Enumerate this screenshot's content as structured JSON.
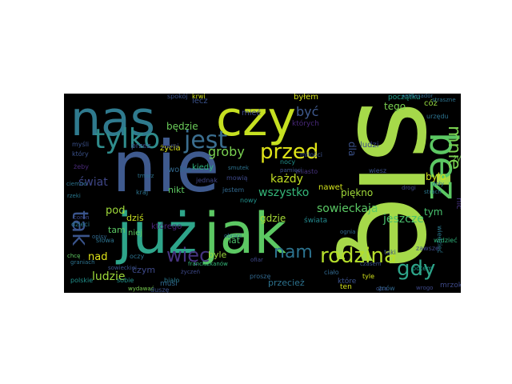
{
  "cloud": {
    "background": "#000000",
    "words": [
      {
        "text": "się",
        "color": "#a6d94a"
      },
      {
        "text": "nie",
        "color": "#3f5a8e"
      },
      {
        "text": "już",
        "color": "#2ea58a"
      },
      {
        "text": "jak",
        "color": "#5cc863"
      },
      {
        "text": "nas",
        "color": "#2f7a8e"
      },
      {
        "text": "czy",
        "color": "#c6e021"
      },
      {
        "text": "bez",
        "color": "#5cc863"
      },
      {
        "text": "tylko",
        "color": "#2f8c8c"
      },
      {
        "text": "jest",
        "color": "#3b6e8f"
      },
      {
        "text": "przed",
        "color": "#dfe318"
      },
      {
        "text": "więc",
        "color": "#46337e"
      },
      {
        "text": "rodzina",
        "color": "#b5de2b"
      },
      {
        "text": "gdy",
        "color": "#2ea58a"
      },
      {
        "text": "tak",
        "color": "#3a548c"
      },
      {
        "text": "mnie",
        "color": "#7ad151"
      },
      {
        "text": "nam",
        "color": "#2c728e"
      },
      {
        "text": "groby",
        "color": "#7ad151"
      },
      {
        "text": "być",
        "color": "#3f5a8e"
      },
      {
        "text": "wszystko",
        "color": "#35b779"
      },
      {
        "text": "sowieckaja",
        "color": "#5ac864"
      },
      {
        "text": "jeszcze",
        "color": "#4ac16d"
      },
      {
        "text": "każdy",
        "color": "#c2df23"
      },
      {
        "text": "ludzie",
        "color": "#9fda3a"
      },
      {
        "text": "świat",
        "color": "#3f4788"
      },
      {
        "text": "dla",
        "color": "#3b528b"
      },
      {
        "text": "będzie",
        "color": "#6ccd5a"
      },
      {
        "text": "pod",
        "color": "#9fda3a"
      },
      {
        "text": "tam",
        "color": "#5ac864"
      },
      {
        "text": "nad",
        "color": "#dfe318"
      },
      {
        "text": "dziś",
        "color": "#c8e020"
      },
      {
        "text": "gdzie",
        "color": "#a5db36"
      },
      {
        "text": "tym",
        "color": "#48c16e"
      },
      {
        "text": "było",
        "color": "#d2e21b"
      },
      {
        "text": "piękno",
        "color": "#a0da39"
      },
      {
        "text": "mieć",
        "color": "#3e4989"
      },
      {
        "text": "tego",
        "color": "#7ad151"
      },
      {
        "text": "byłem",
        "color": "#d5e21a"
      },
      {
        "text": "kiedy",
        "color": "#2fb47c"
      },
      {
        "text": "nawet",
        "color": "#d0e11c"
      },
      {
        "text": "lecz",
        "color": "#3b528b"
      },
      {
        "text": "nikt",
        "color": "#5ec962"
      },
      {
        "text": "lat",
        "color": "#4cc26c"
      },
      {
        "text": "byle",
        "color": "#9bd93c"
      },
      {
        "text": "czym",
        "color": "#3e4989"
      },
      {
        "text": "które",
        "color": "#3b528b"
      },
      {
        "text": "przecież",
        "color": "#2c728e"
      },
      {
        "text": "musi",
        "color": "#31688e"
      },
      {
        "text": "wiedzieć",
        "color": "#2a788e"
      },
      {
        "text": "mrzok",
        "color": "#3e4989"
      },
      {
        "text": "nic",
        "color": "#46327e"
      },
      {
        "text": "myśli",
        "color": "#3b528b"
      },
      {
        "text": "życie",
        "color": "#7ad151"
      },
      {
        "text": "życia",
        "color": "#d8e219"
      },
      {
        "text": "wolno",
        "color": "#31688e"
      },
      {
        "text": "świata",
        "color": "#23898e"
      },
      {
        "text": "którego",
        "color": "#482878"
      },
      {
        "text": "niej",
        "color": "#5ec962"
      },
      {
        "text": "ludzi",
        "color": "#3e4989"
      },
      {
        "text": "których",
        "color": "#482878"
      },
      {
        "text": "cóż",
        "color": "#95d840"
      },
      {
        "text": "początku",
        "color": "#1f9e89"
      },
      {
        "text": "miasto",
        "color": "#46337e"
      },
      {
        "text": "spokój",
        "color": "#3b528b"
      },
      {
        "text": "krwi",
        "color": "#d2e21b"
      },
      {
        "text": "oczy",
        "color": "#2c728e"
      },
      {
        "text": "żeby",
        "color": "#482878"
      },
      {
        "text": "przez",
        "color": "#3b528b"
      },
      {
        "text": "ziemi",
        "color": "#3e4989"
      },
      {
        "text": "który",
        "color": "#3b528b"
      },
      {
        "text": "jednak",
        "color": "#404688"
      },
      {
        "text": "sobie",
        "color": "#21918c"
      },
      {
        "text": "wydawać",
        "color": "#7ad151"
      },
      {
        "text": "strach",
        "color": "#2a788e"
      },
      {
        "text": "tyle",
        "color": "#d2e21b"
      },
      {
        "text": "znów",
        "color": "#31688e"
      },
      {
        "text": "zawsze",
        "color": "#3e4989"
      },
      {
        "text": "widzieć",
        "color": "#2fb47c"
      },
      {
        "text": "taki",
        "color": "#3b528b"
      },
      {
        "text": "potem",
        "color": "#1f9e89"
      },
      {
        "text": "ciało",
        "color": "#31688e"
      },
      {
        "text": "urzędu",
        "color": "#2c728e"
      },
      {
        "text": "biało",
        "color": "#2a788e"
      },
      {
        "text": "graniach",
        "color": "#2c728e"
      },
      {
        "text": "ofiar",
        "color": "#3e4989"
      },
      {
        "text": "wiesz",
        "color": "#3b528b"
      },
      {
        "text": "franciszkanów",
        "color": "#35b779"
      },
      {
        "text": "proszę",
        "color": "#31688e"
      },
      {
        "text": "duszę",
        "color": "#3b528b"
      },
      {
        "text": "chcę",
        "color": "#5ec962"
      },
      {
        "text": "życzeń",
        "color": "#3e4989"
      },
      {
        "text": "mowią",
        "color": "#3e4989"
      },
      {
        "text": "jestem",
        "color": "#31688e"
      },
      {
        "text": "sowieckiej",
        "color": "#3b528b"
      },
      {
        "text": "kraj",
        "color": "#2c728e"
      },
      {
        "text": "nowy",
        "color": "#21918c"
      },
      {
        "text": "ten",
        "color": "#d2e21b"
      },
      {
        "text": "czasem",
        "color": "#3b528b"
      },
      {
        "text": "słowa",
        "color": "#2c728e"
      },
      {
        "text": "wrogo",
        "color": "#3e4989"
      },
      {
        "text": "miłości",
        "color": "#3b528b"
      },
      {
        "text": "obroni",
        "color": "#2c728e"
      },
      {
        "text": "ambasador",
        "color": "#31688e"
      },
      {
        "text": "straszne",
        "color": "#2c728e"
      },
      {
        "text": "pamięci",
        "color": "#3b528b"
      },
      {
        "text": "ciemno",
        "color": "#2c728e"
      },
      {
        "text": "dzieci",
        "color": "#2a788e"
      },
      {
        "text": "ognia",
        "color": "#31688e"
      },
      {
        "text": "polskie",
        "color": "#21918c"
      },
      {
        "text": "doły",
        "color": "#2c728e"
      },
      {
        "text": "drogi",
        "color": "#3e4989"
      },
      {
        "text": "nocy",
        "color": "#21918c"
      },
      {
        "text": "smutek",
        "color": "#2c728e"
      },
      {
        "text": "ojca",
        "color": "#3b528b"
      },
      {
        "text": "coron",
        "color": "#3e4989"
      },
      {
        "text": "rzeki",
        "color": "#2a788e"
      },
      {
        "text": "opisy",
        "color": "#31688e"
      },
      {
        "text": "tmarz",
        "color": "#2c728e"
      },
      {
        "text": "pism",
        "color": "#3e4989"
      }
    ]
  }
}
